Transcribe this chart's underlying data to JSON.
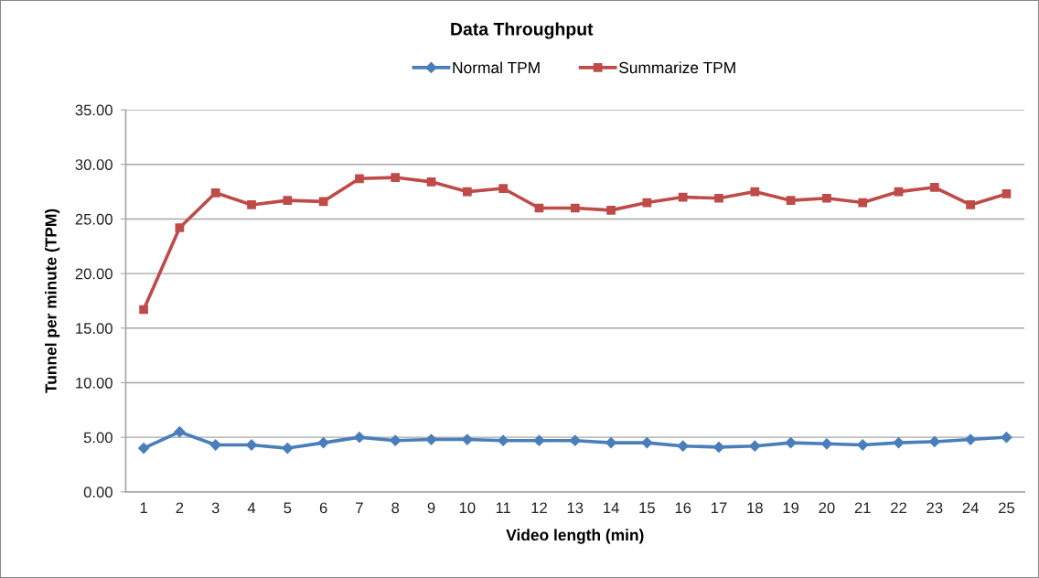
{
  "chart_data": {
    "type": "line",
    "title": "Data Throughput",
    "xlabel": "Video length (min)",
    "ylabel": "Tunnel per minute (TPM)",
    "categories": [
      "1",
      "2",
      "3",
      "4",
      "5",
      "6",
      "7",
      "8",
      "9",
      "10",
      "11",
      "12",
      "13",
      "14",
      "15",
      "16",
      "17",
      "18",
      "19",
      "20",
      "21",
      "22",
      "23",
      "24",
      "25"
    ],
    "series": [
      {
        "name": "Normal TPM",
        "color": "#4a7ebb",
        "marker": "diamond",
        "values": [
          4.0,
          5.5,
          4.3,
          4.3,
          4.0,
          4.5,
          5.0,
          4.7,
          4.8,
          4.8,
          4.7,
          4.7,
          4.7,
          4.5,
          4.5,
          4.2,
          4.1,
          4.2,
          4.5,
          4.4,
          4.3,
          4.5,
          4.6,
          4.8,
          5.0
        ]
      },
      {
        "name": "Summarize TPM",
        "color": "#be4b48",
        "marker": "square",
        "values": [
          16.7,
          24.2,
          27.4,
          26.3,
          26.7,
          26.6,
          28.7,
          28.8,
          28.4,
          27.5,
          27.8,
          26.0,
          26.0,
          25.8,
          26.5,
          27.0,
          26.9,
          27.5,
          26.7,
          26.9,
          26.5,
          27.5,
          27.9,
          26.3,
          27.3
        ]
      }
    ],
    "ylim": [
      0,
      35
    ],
    "yticks": [
      {
        "value": 0,
        "label": "0.00"
      },
      {
        "value": 5,
        "label": "5.00"
      },
      {
        "value": 10,
        "label": "10.00"
      },
      {
        "value": 15,
        "label": "15.00"
      },
      {
        "value": 20,
        "label": "20.00"
      },
      {
        "value": 25,
        "label": "25.00"
      },
      {
        "value": 30,
        "label": "30.00"
      },
      {
        "value": 35,
        "label": "35.00"
      }
    ],
    "grid": "y",
    "legend": "top",
    "line_style": "solid"
  }
}
